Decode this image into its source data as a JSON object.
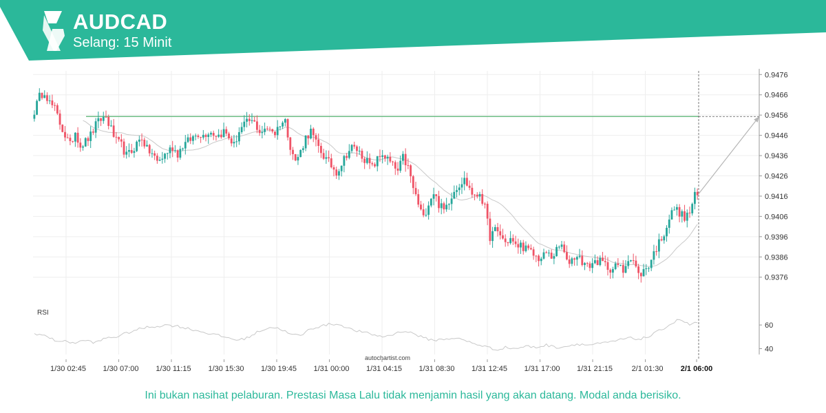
{
  "header": {
    "symbol": "AUDCAD",
    "interval": "Selang: 15 Minit",
    "brand_color": "#2bb89a"
  },
  "footer": {
    "disclaimer": "Ini bukan nasihat pelaburan. Prestasi Masa Lalu tidak menjamin hasil yang akan datang. Modal anda berisiko."
  },
  "watermark": "autochartist.com",
  "chart_data": [
    {
      "type": "candlestick",
      "title": "AUDCAD",
      "y_ticks": [
        "0.9476",
        "0.9466",
        "0.9456",
        "0.9446",
        "0.9436",
        "0.9426",
        "0.9416",
        "0.9406",
        "0.9396",
        "0.9386",
        "0.9376"
      ],
      "ylim": [
        0.93708,
        0.94778
      ],
      "x_ticks": [
        "1/30 02:45",
        "1/30 07:00",
        "1/30 11:15",
        "1/30 15:30",
        "1/30 19:45",
        "1/31 00:00",
        "1/31 04:15",
        "1/31 08:30",
        "1/31 12:45",
        "1/31 17:00",
        "1/31 21:15",
        "2/1 01:30",
        "2/1 06:00"
      ],
      "highlight_x_tick": "2/1 06:00",
      "resistance_level": 0.94553,
      "forecast_target": 0.94553,
      "bull_color": "#26a69a",
      "bear_color": "#ef5366",
      "anchors": [
        [
          0,
          0.9458
        ],
        [
          2,
          0.9465
        ],
        [
          4,
          0.9468
        ],
        [
          6,
          0.9462
        ],
        [
          8,
          0.9459
        ],
        [
          10,
          0.9452
        ],
        [
          12,
          0.9446
        ],
        [
          14,
          0.9441
        ],
        [
          16,
          0.9448
        ],
        [
          18,
          0.9441
        ],
        [
          20,
          0.9443
        ],
        [
          22,
          0.9446
        ],
        [
          24,
          0.9451
        ],
        [
          26,
          0.9454
        ],
        [
          28,
          0.9455
        ],
        [
          30,
          0.9449
        ],
        [
          32,
          0.9443
        ],
        [
          34,
          0.9441
        ],
        [
          36,
          0.9436
        ],
        [
          38,
          0.9438
        ],
        [
          40,
          0.9442
        ],
        [
          42,
          0.9445
        ],
        [
          44,
          0.9439
        ],
        [
          46,
          0.9437
        ],
        [
          48,
          0.9433
        ],
        [
          50,
          0.9435
        ],
        [
          52,
          0.9438
        ],
        [
          54,
          0.944
        ],
        [
          56,
          0.9437
        ],
        [
          58,
          0.9441
        ],
        [
          60,
          0.9443
        ],
        [
          62,
          0.9445
        ],
        [
          64,
          0.9447
        ],
        [
          66,
          0.9446
        ],
        [
          68,
          0.9448
        ],
        [
          70,
          0.9447
        ],
        [
          72,
          0.9446
        ],
        [
          74,
          0.9448
        ],
        [
          76,
          0.9445
        ],
        [
          78,
          0.9441
        ],
        [
          80,
          0.9448
        ],
        [
          82,
          0.9451
        ],
        [
          84,
          0.9453
        ],
        [
          86,
          0.9452
        ],
        [
          88,
          0.9448
        ],
        [
          90,
          0.9448
        ],
        [
          92,
          0.945
        ],
        [
          94,
          0.9447
        ],
        [
          96,
          0.9452
        ],
        [
          98,
          0.9453
        ],
        [
          100,
          0.9441
        ],
        [
          102,
          0.9433
        ],
        [
          104,
          0.9438
        ],
        [
          106,
          0.9445
        ],
        [
          108,
          0.9448
        ],
        [
          110,
          0.9442
        ],
        [
          112,
          0.9438
        ],
        [
          114,
          0.9434
        ],
        [
          116,
          0.9431
        ],
        [
          118,
          0.9428
        ],
        [
          120,
          0.9432
        ],
        [
          122,
          0.9437
        ],
        [
          124,
          0.944
        ],
        [
          126,
          0.9439
        ],
        [
          128,
          0.9436
        ],
        [
          130,
          0.9433
        ],
        [
          132,
          0.943
        ],
        [
          134,
          0.9434
        ],
        [
          136,
          0.9437
        ],
        [
          138,
          0.9434
        ],
        [
          140,
          0.9431
        ],
        [
          142,
          0.9428
        ],
        [
          144,
          0.9435
        ],
        [
          146,
          0.943
        ],
        [
          148,
          0.942
        ],
        [
          150,
          0.9412
        ],
        [
          152,
          0.9405
        ],
        [
          154,
          0.9413
        ],
        [
          156,
          0.9418
        ],
        [
          158,
          0.9412
        ],
        [
          160,
          0.9409
        ],
        [
          162,
          0.9414
        ],
        [
          164,
          0.9419
        ],
        [
          166,
          0.9422
        ],
        [
          168,
          0.9424
        ],
        [
          170,
          0.942
        ],
        [
          172,
          0.9415
        ],
        [
          174,
          0.9418
        ],
        [
          176,
          0.941
        ],
        [
          178,
          0.9396
        ],
        [
          180,
          0.9399
        ],
        [
          182,
          0.9397
        ],
        [
          184,
          0.9393
        ],
        [
          186,
          0.9395
        ],
        [
          188,
          0.9391
        ],
        [
          190,
          0.9392
        ],
        [
          192,
          0.939
        ],
        [
          194,
          0.9388
        ],
        [
          196,
          0.9386
        ],
        [
          198,
          0.9385
        ],
        [
          200,
          0.9388
        ],
        [
          202,
          0.9386
        ],
        [
          204,
          0.9389
        ],
        [
          206,
          0.9392
        ],
        [
          208,
          0.9383
        ],
        [
          210,
          0.9385
        ],
        [
          212,
          0.9387
        ],
        [
          214,
          0.9384
        ],
        [
          216,
          0.9381
        ],
        [
          218,
          0.9383
        ],
        [
          220,
          0.9384
        ],
        [
          222,
          0.9383
        ],
        [
          224,
          0.9381
        ],
        [
          226,
          0.938
        ],
        [
          228,
          0.9382
        ],
        [
          230,
          0.9379
        ],
        [
          232,
          0.9386
        ],
        [
          234,
          0.9384
        ],
        [
          236,
          0.9377
        ],
        [
          238,
          0.9379
        ],
        [
          240,
          0.9382
        ],
        [
          242,
          0.9388
        ],
        [
          244,
          0.9393
        ],
        [
          246,
          0.9398
        ],
        [
          248,
          0.9405
        ],
        [
          250,
          0.941
        ],
        [
          252,
          0.9408
        ],
        [
          254,
          0.9405
        ],
        [
          256,
          0.9408
        ],
        [
          258,
          0.9416
        ]
      ],
      "rsi": {
        "label": "RSI",
        "y_ticks": [
          "60",
          "40"
        ],
        "ylim": [
          35,
          70
        ],
        "anchors": [
          [
            0,
            53
          ],
          [
            4,
            51
          ],
          [
            8,
            47
          ],
          [
            12,
            46
          ],
          [
            16,
            45
          ],
          [
            20,
            47
          ],
          [
            24,
            45
          ],
          [
            28,
            49
          ],
          [
            32,
            50
          ],
          [
            36,
            53
          ],
          [
            40,
            56
          ],
          [
            44,
            58
          ],
          [
            48,
            59
          ],
          [
            52,
            60
          ],
          [
            56,
            59
          ],
          [
            60,
            57
          ],
          [
            64,
            55
          ],
          [
            68,
            53
          ],
          [
            72,
            51
          ],
          [
            76,
            49
          ],
          [
            80,
            47
          ],
          [
            84,
            50
          ],
          [
            88,
            55
          ],
          [
            92,
            58
          ],
          [
            96,
            57
          ],
          [
            100,
            52
          ],
          [
            104,
            51
          ],
          [
            108,
            57
          ],
          [
            112,
            59
          ],
          [
            116,
            61
          ],
          [
            120,
            60
          ],
          [
            124,
            56
          ],
          [
            128,
            54
          ],
          [
            132,
            52
          ],
          [
            136,
            50
          ],
          [
            140,
            52
          ],
          [
            144,
            55
          ],
          [
            148,
            53
          ],
          [
            152,
            49
          ],
          [
            156,
            47
          ],
          [
            160,
            48
          ],
          [
            164,
            49
          ],
          [
            168,
            47
          ],
          [
            172,
            44
          ],
          [
            176,
            42
          ],
          [
            180,
            39
          ],
          [
            184,
            41
          ],
          [
            188,
            40
          ],
          [
            192,
            42
          ],
          [
            196,
            41
          ],
          [
            200,
            43
          ],
          [
            204,
            41
          ],
          [
            208,
            42
          ],
          [
            212,
            44
          ],
          [
            216,
            43
          ],
          [
            220,
            44
          ],
          [
            224,
            45
          ],
          [
            228,
            47
          ],
          [
            232,
            49
          ],
          [
            236,
            48
          ],
          [
            240,
            50
          ],
          [
            244,
            55
          ],
          [
            248,
            60
          ],
          [
            252,
            65
          ],
          [
            256,
            60
          ],
          [
            258,
            62
          ]
        ]
      }
    }
  ]
}
